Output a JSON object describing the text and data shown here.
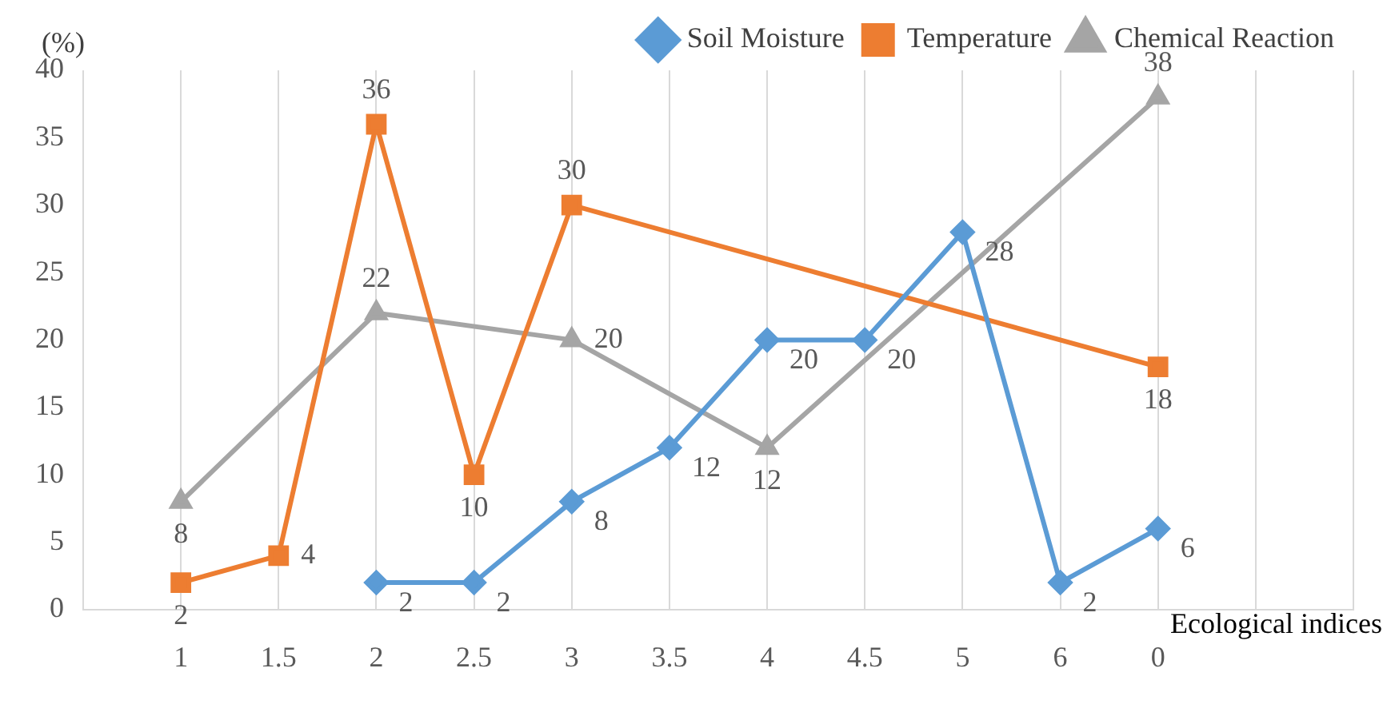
{
  "chart_data": {
    "type": "line",
    "xlabel": "Ecological indices",
    "ylabel": "(%)",
    "categories": [
      null,
      "1",
      "1.5",
      "2",
      "2.5",
      "3",
      "3.5",
      "4",
      "4.5",
      "5",
      "6",
      "0",
      null,
      null
    ],
    "series": [
      {
        "name": "Soil Moisture",
        "color": "#5b9bd5",
        "marker": "diamond",
        "values": [
          null,
          null,
          null,
          2,
          2,
          8,
          12,
          20,
          20,
          28,
          2,
          6,
          null,
          null
        ]
      },
      {
        "name": "Temperature",
        "color": "#ed7d31",
        "marker": "square",
        "values": [
          null,
          2,
          4,
          36,
          10,
          30,
          null,
          null,
          null,
          null,
          null,
          18,
          null,
          null
        ]
      },
      {
        "name": "Chemical Reaction",
        "color": "#a5a5a5",
        "marker": "triangle",
        "values": [
          null,
          8,
          null,
          22,
          null,
          20,
          null,
          12,
          null,
          null,
          null,
          38,
          null,
          null
        ]
      }
    ],
    "ylim": [
      0,
      40
    ],
    "yticks": [
      0,
      5,
      10,
      15,
      20,
      25,
      30,
      35,
      40
    ],
    "grid": "x",
    "legend": "top right",
    "data_labels": true,
    "line_style": "solid"
  }
}
